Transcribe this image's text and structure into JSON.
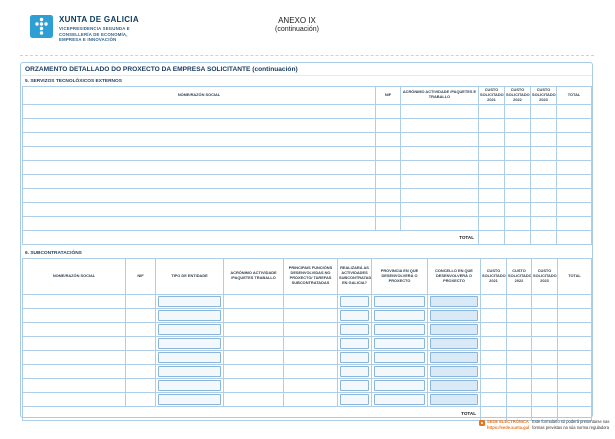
{
  "logo": {
    "org": "XUNTA DE GALICIA",
    "dept_line1": "VICEPRESIDENCIA SEGUNDA E",
    "dept_line2": "CONSELLERÍA DE ECONOMÍA,",
    "dept_line3": "EMPRESA E INNOVACIÓN"
  },
  "annex": {
    "title": "ANEXO IX",
    "subtitle": "(continuación)"
  },
  "form": {
    "title": "ORZAMENTO DETALLADO DO PROXECTO DA EMPRESA SOLICITANTE (continuación)"
  },
  "section5": {
    "heading": "5. SERVIZOS TECNOLÓXICOS EXTERNOS",
    "columns": [
      "NOME/RAZÓN SOCIAL",
      "NIF",
      "ACRÓNIMO ACTIVIDADE /PAQUETES E TRABALLO",
      "CUSTO SOLICITADO 2021",
      "CUSTO SOLICITADO 2022",
      "CUSTO SOLICITADO 2023",
      "TOTAL"
    ],
    "row_count": 9,
    "total_label": "TOTAL"
  },
  "section6": {
    "heading": "6. SUBCONTRATACIÓNS",
    "columns": [
      "NOME/RAZÓN SOCIAL",
      "NIF",
      "TIPO DE ENTIDADE",
      "ACRÓNIMO ACTIVIDADE /PAQUETES TRABALLO",
      "PRINCIPAIS FUNCIÓNS DESENVOLVIDAS NO PROXECTO/ TAREFAS SUBCONTRATADAS",
      "REALIZARÁ AS ACTIVIDADES SUBCONTRATADAS EN GALICIA?",
      "PROVINCIA EN QUE DESENVOLVERÁ O PROXECTO",
      "CONCELLO EN QUE DESENVOLVERÁ O PROXECTO",
      "CUSTO SOLICITADO 2021",
      "CUSTO SOLICITADO 2022",
      "CUSTO SOLICITADO 2023",
      "TOTAL"
    ],
    "row_count": 8,
    "total_label": "TOTAL"
  },
  "footer": {
    "sede_label": "SEDE ELECTRÓNICA",
    "sede_url": "https://sede.xunta.gal",
    "note_line1": "Este formulario só poderá presentarse nas",
    "note_line2": "formas previstas na súa norma reguladora"
  },
  "colors": {
    "brand_blue": "#2e9fd4",
    "table_border_blue": "#aecde6",
    "title_navy": "#16395f",
    "footer_orange": "#e8741e"
  }
}
